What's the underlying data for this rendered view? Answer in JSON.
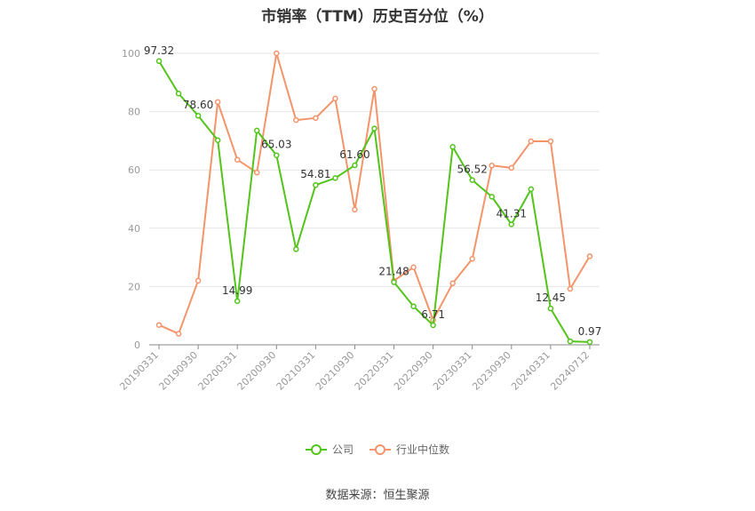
{
  "title": "市销率（TTM）历史百分位（%）",
  "source": "数据来源：恒生聚源",
  "chart_data": {
    "type": "line",
    "x": [
      "20190331",
      "20190630",
      "20190930",
      "20191231",
      "20200331",
      "20200630",
      "20200930",
      "20201231",
      "20210331",
      "20210630",
      "20210930",
      "20211231",
      "20220331",
      "20220630",
      "20220930",
      "20221231",
      "20230331",
      "20230630",
      "20230930",
      "20231231",
      "20240331",
      "20240630",
      "20240712"
    ],
    "x_tick_labels": [
      "20190331",
      "20190930",
      "20200331",
      "20200930",
      "20210331",
      "20210930",
      "20220331",
      "20220930",
      "20230331",
      "20230930",
      "20240331",
      "20240712"
    ],
    "ylim": [
      0,
      100
    ],
    "y_ticks": [
      0,
      20,
      40,
      60,
      80,
      100
    ],
    "grid": true,
    "legend_position": "bottom",
    "series": [
      {
        "name": "公司",
        "color": "#52c41a",
        "values": [
          97.32,
          86.2,
          78.6,
          70.2,
          14.99,
          73.5,
          65.03,
          32.8,
          54.81,
          57.2,
          61.6,
          74.2,
          21.48,
          13.2,
          6.71,
          67.9,
          56.52,
          50.8,
          41.31,
          53.4,
          12.45,
          1.2,
          0.97
        ],
        "labels": [
          "97.32",
          null,
          "78.60",
          null,
          "14.99",
          null,
          "65.03",
          null,
          "54.81",
          null,
          "61.60",
          null,
          "21.48",
          null,
          "6.71",
          null,
          "56.52",
          null,
          "41.31",
          null,
          "12.45",
          null,
          "0.97"
        ]
      },
      {
        "name": "行业中位数",
        "color": "#f4946b",
        "values": [
          6.8,
          3.8,
          22.0,
          83.3,
          63.5,
          59.1,
          100.0,
          77.1,
          77.8,
          84.5,
          46.4,
          87.8,
          22.0,
          26.6,
          8.5,
          21.1,
          29.5,
          61.5,
          60.7,
          69.8,
          69.8,
          19.2,
          30.4
        ]
      }
    ]
  }
}
